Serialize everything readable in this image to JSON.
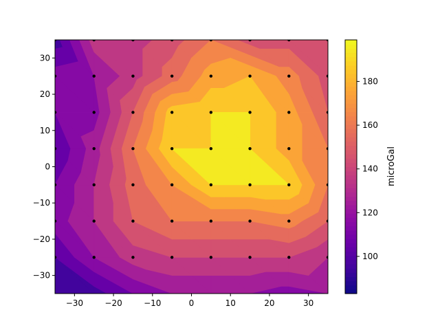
{
  "chart_data": {
    "type": "contour",
    "title": "",
    "xlabel": "",
    "ylabel": "",
    "xlim": [
      -35,
      35
    ],
    "ylim": [
      -35,
      35
    ],
    "x_ticks": [
      -30,
      -20,
      -10,
      0,
      10,
      20,
      30
    ],
    "y_ticks": [
      -30,
      -20,
      -10,
      0,
      10,
      20,
      30
    ],
    "colorbar": {
      "label": "microGal",
      "range": [
        83,
        199
      ],
      "ticks": [
        100,
        120,
        140,
        160,
        180
      ],
      "colormap": "plasma"
    },
    "grid": false,
    "x": [
      -35,
      -25,
      -15,
      -5,
      5,
      15,
      25,
      35
    ],
    "y": [
      35,
      25,
      15,
      5,
      -5,
      -15,
      -25,
      -35
    ],
    "z": [
      [
        95,
        135,
        135,
        145,
        160,
        145,
        145,
        150
      ],
      [
        115,
        120,
        135,
        155,
        175,
        180,
        165,
        145
      ],
      [
        110,
        115,
        150,
        185,
        190,
        190,
        175,
        150
      ],
      [
        100,
        125,
        160,
        190,
        190,
        190,
        175,
        160
      ],
      [
        110,
        130,
        155,
        170,
        190,
        190,
        190,
        160
      ],
      [
        115,
        130,
        150,
        160,
        160,
        160,
        165,
        150
      ],
      [
        100,
        120,
        135,
        140,
        140,
        140,
        140,
        130
      ],
      [
        90,
        95,
        110,
        120,
        120,
        120,
        115,
        120
      ]
    ],
    "levels": [
      80,
      90,
      100,
      110,
      120,
      130,
      140,
      150,
      160,
      170,
      180,
      190,
      200
    ],
    "stations": {
      "x": [
        -25,
        -15,
        -5,
        5,
        15,
        25
      ],
      "y": [
        35,
        25,
        15,
        5,
        -5,
        -15,
        -25
      ]
    }
  }
}
